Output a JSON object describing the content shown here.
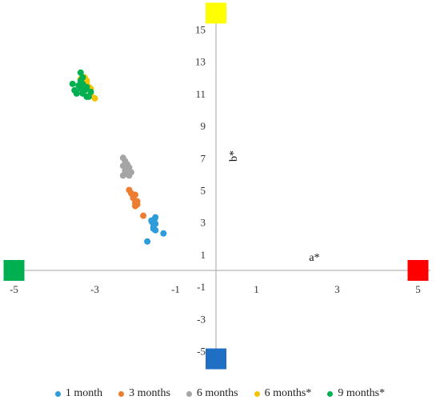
{
  "chart_data": {
    "type": "scatter",
    "title": "",
    "xlabel": "a*",
    "ylabel": "b*",
    "xlim": [
      -5,
      5
    ],
    "ylim": [
      -5,
      15
    ],
    "xticks": [
      -5,
      -3,
      -1,
      1,
      3,
      5
    ],
    "yticks": [
      -5,
      -3,
      -1,
      1,
      3,
      5,
      7,
      9,
      11,
      13,
      15
    ],
    "grid": false,
    "legend_position": "bottom",
    "corner_markers": [
      {
        "name": "red",
        "x": 5,
        "y": 0,
        "color": "#FF0000"
      },
      {
        "name": "green",
        "x": -5,
        "y": 0,
        "color": "#00B050"
      },
      {
        "name": "yellow",
        "x": 0,
        "y": 16,
        "color": "#FFFF00"
      },
      {
        "name": "blue",
        "x": 0,
        "y": -5.5,
        "color": "#1F6FC4"
      }
    ],
    "series": [
      {
        "name": "1 month",
        "color": "#2E9BDA",
        "points": [
          [
            -1.7,
            1.8
          ],
          [
            -1.5,
            2.5
          ],
          [
            -1.55,
            2.7
          ],
          [
            -1.5,
            2.9
          ],
          [
            -1.58,
            3.0
          ],
          [
            -1.52,
            3.2
          ],
          [
            -1.6,
            3.1
          ],
          [
            -1.55,
            2.6
          ],
          [
            -1.3,
            2.3
          ],
          [
            -1.5,
            3.3
          ]
        ]
      },
      {
        "name": "3 months",
        "color": "#ED7D31",
        "points": [
          [
            -1.8,
            3.4
          ],
          [
            -2.0,
            4.0
          ],
          [
            -2.0,
            4.2
          ],
          [
            -1.95,
            4.3
          ],
          [
            -2.05,
            4.5
          ],
          [
            -2.0,
            4.7
          ],
          [
            -2.1,
            4.8
          ],
          [
            -2.05,
            4.6
          ],
          [
            -2.15,
            5.0
          ],
          [
            -1.95,
            4.1
          ]
        ]
      },
      {
        "name": "6 months",
        "color": "#A5A5A5",
        "points": [
          [
            -2.3,
            5.9
          ],
          [
            -2.2,
            6.0
          ],
          [
            -2.1,
            6.1
          ],
          [
            -2.25,
            6.2
          ],
          [
            -2.15,
            6.4
          ],
          [
            -2.3,
            6.5
          ],
          [
            -2.2,
            6.6
          ],
          [
            -2.25,
            6.8
          ],
          [
            -2.3,
            7.0
          ],
          [
            -2.15,
            5.9
          ]
        ]
      },
      {
        "name": "6 months*",
        "color": "#F5C200",
        "points": [
          [
            -3.0,
            10.7
          ],
          [
            -3.1,
            11.0
          ],
          [
            -3.15,
            11.4
          ],
          [
            -3.2,
            11.6
          ],
          [
            -3.25,
            12.0
          ],
          [
            -3.35,
            11.9
          ],
          [
            -3.2,
            11.8
          ],
          [
            -3.1,
            11.3
          ]
        ]
      },
      {
        "name": "9 months*",
        "color": "#00B050",
        "points": [
          [
            -3.2,
            10.8
          ],
          [
            -3.3,
            11.0
          ],
          [
            -3.25,
            11.2
          ],
          [
            -3.35,
            11.3
          ],
          [
            -3.4,
            11.5
          ],
          [
            -3.3,
            11.6
          ],
          [
            -3.2,
            11.4
          ],
          [
            -3.5,
            11.2
          ],
          [
            -3.55,
            11.6
          ],
          [
            -3.35,
            11.8
          ],
          [
            -3.3,
            12.0
          ],
          [
            -3.35,
            12.3
          ],
          [
            -3.1,
            11.1
          ],
          [
            -3.15,
            10.8
          ],
          [
            -3.45,
            11.0
          ]
        ]
      }
    ]
  }
}
